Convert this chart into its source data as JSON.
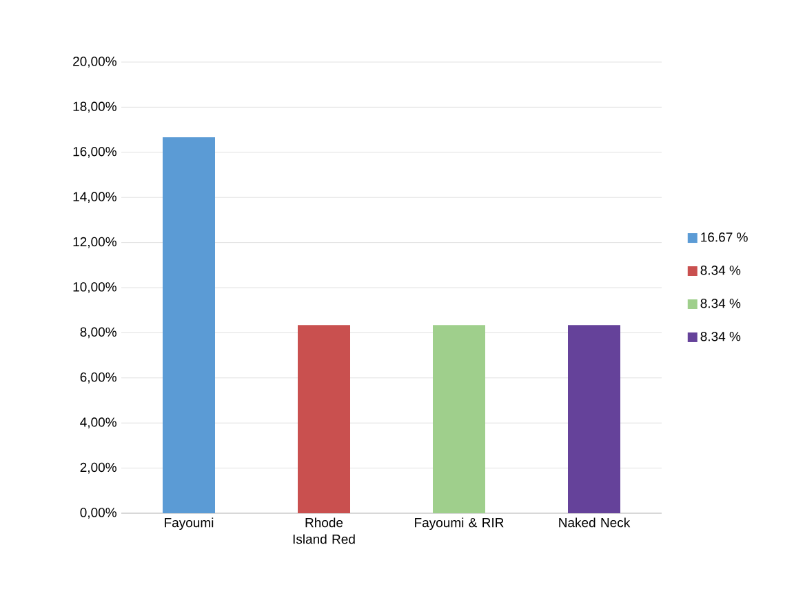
{
  "chart_data": {
    "type": "bar",
    "categories": [
      "Fayoumi",
      "Rhode Island Red",
      "Fayoumi & RIR",
      "Naked Neck"
    ],
    "series": [
      {
        "name": "16.67 %",
        "color": "#5b9bd5",
        "values": [
          16.67,
          null,
          null,
          null
        ]
      },
      {
        "name": "8.34 %",
        "color": "#c9504f",
        "values": [
          null,
          8.34,
          null,
          null
        ]
      },
      {
        "name": "8.34 %",
        "color": "#9fcf8c",
        "values": [
          null,
          null,
          8.34,
          null
        ]
      },
      {
        "name": "8.34 %",
        "color": "#65429a",
        "values": [
          null,
          null,
          null,
          8.34
        ]
      }
    ],
    "ylim": [
      0,
      20
    ],
    "yticks": [
      {
        "value": 0,
        "label": "0,00%"
      },
      {
        "value": 2,
        "label": "2,00%"
      },
      {
        "value": 4,
        "label": "4,00%"
      },
      {
        "value": 6,
        "label": "6,00%"
      },
      {
        "value": 8,
        "label": "8,00%"
      },
      {
        "value": 10,
        "label": "10,00%"
      },
      {
        "value": 12,
        "label": "12,00%"
      },
      {
        "value": 14,
        "label": "14,00%"
      },
      {
        "value": 16,
        "label": "16,00%"
      },
      {
        "value": 18,
        "label": "18,00%"
      },
      {
        "value": 20,
        "label": "20,00%"
      }
    ],
    "grid": "y",
    "legend": "right"
  }
}
